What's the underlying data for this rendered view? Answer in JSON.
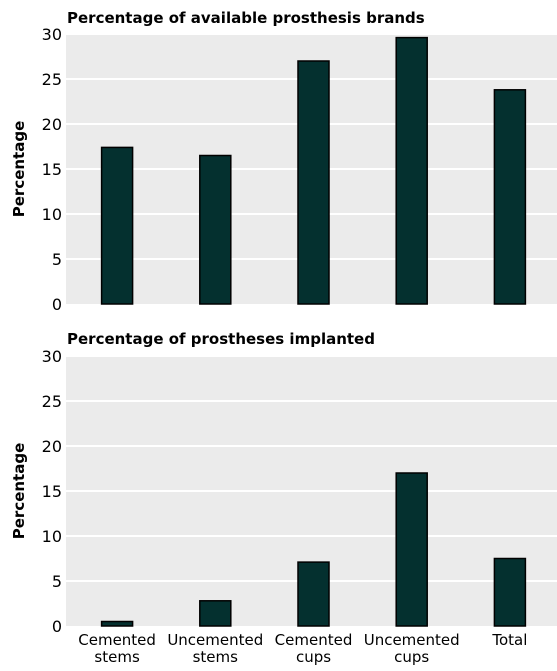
{
  "colors": {
    "panel_background": "#ebebeb",
    "gridline": "#ffffff",
    "bar_fill": "#04302f",
    "bar_stroke": "#000000"
  },
  "x_axis": {
    "categories": [
      [
        "Cemented",
        "stems"
      ],
      [
        "Uncemented",
        "stems"
      ],
      [
        "Cemented",
        "cups"
      ],
      [
        "Uncemented",
        "cups"
      ],
      [
        "Total"
      ]
    ]
  },
  "chart_data": [
    {
      "type": "bar",
      "title": "Percentage of available prosthesis brands",
      "ylabel": "Percentage",
      "categories": [
        "Cemented stems",
        "Uncemented stems",
        "Cemented cups",
        "Uncemented cups",
        "Total"
      ],
      "values": [
        17.4,
        16.5,
        27.0,
        29.6,
        23.8
      ],
      "ylim": [
        0,
        30
      ],
      "yticks": [
        0,
        5,
        10,
        15,
        20,
        25,
        30
      ],
      "grid": true
    },
    {
      "type": "bar",
      "title": "Percentage of prostheses implanted",
      "ylabel": "Percentage",
      "categories": [
        "Cemented stems",
        "Uncemented stems",
        "Cemented cups",
        "Uncemented cups",
        "Total"
      ],
      "values": [
        0.5,
        2.8,
        7.1,
        17.0,
        7.5
      ],
      "ylim": [
        0,
        30
      ],
      "yticks": [
        0,
        5,
        10,
        15,
        20,
        25,
        30
      ],
      "grid": true
    }
  ]
}
